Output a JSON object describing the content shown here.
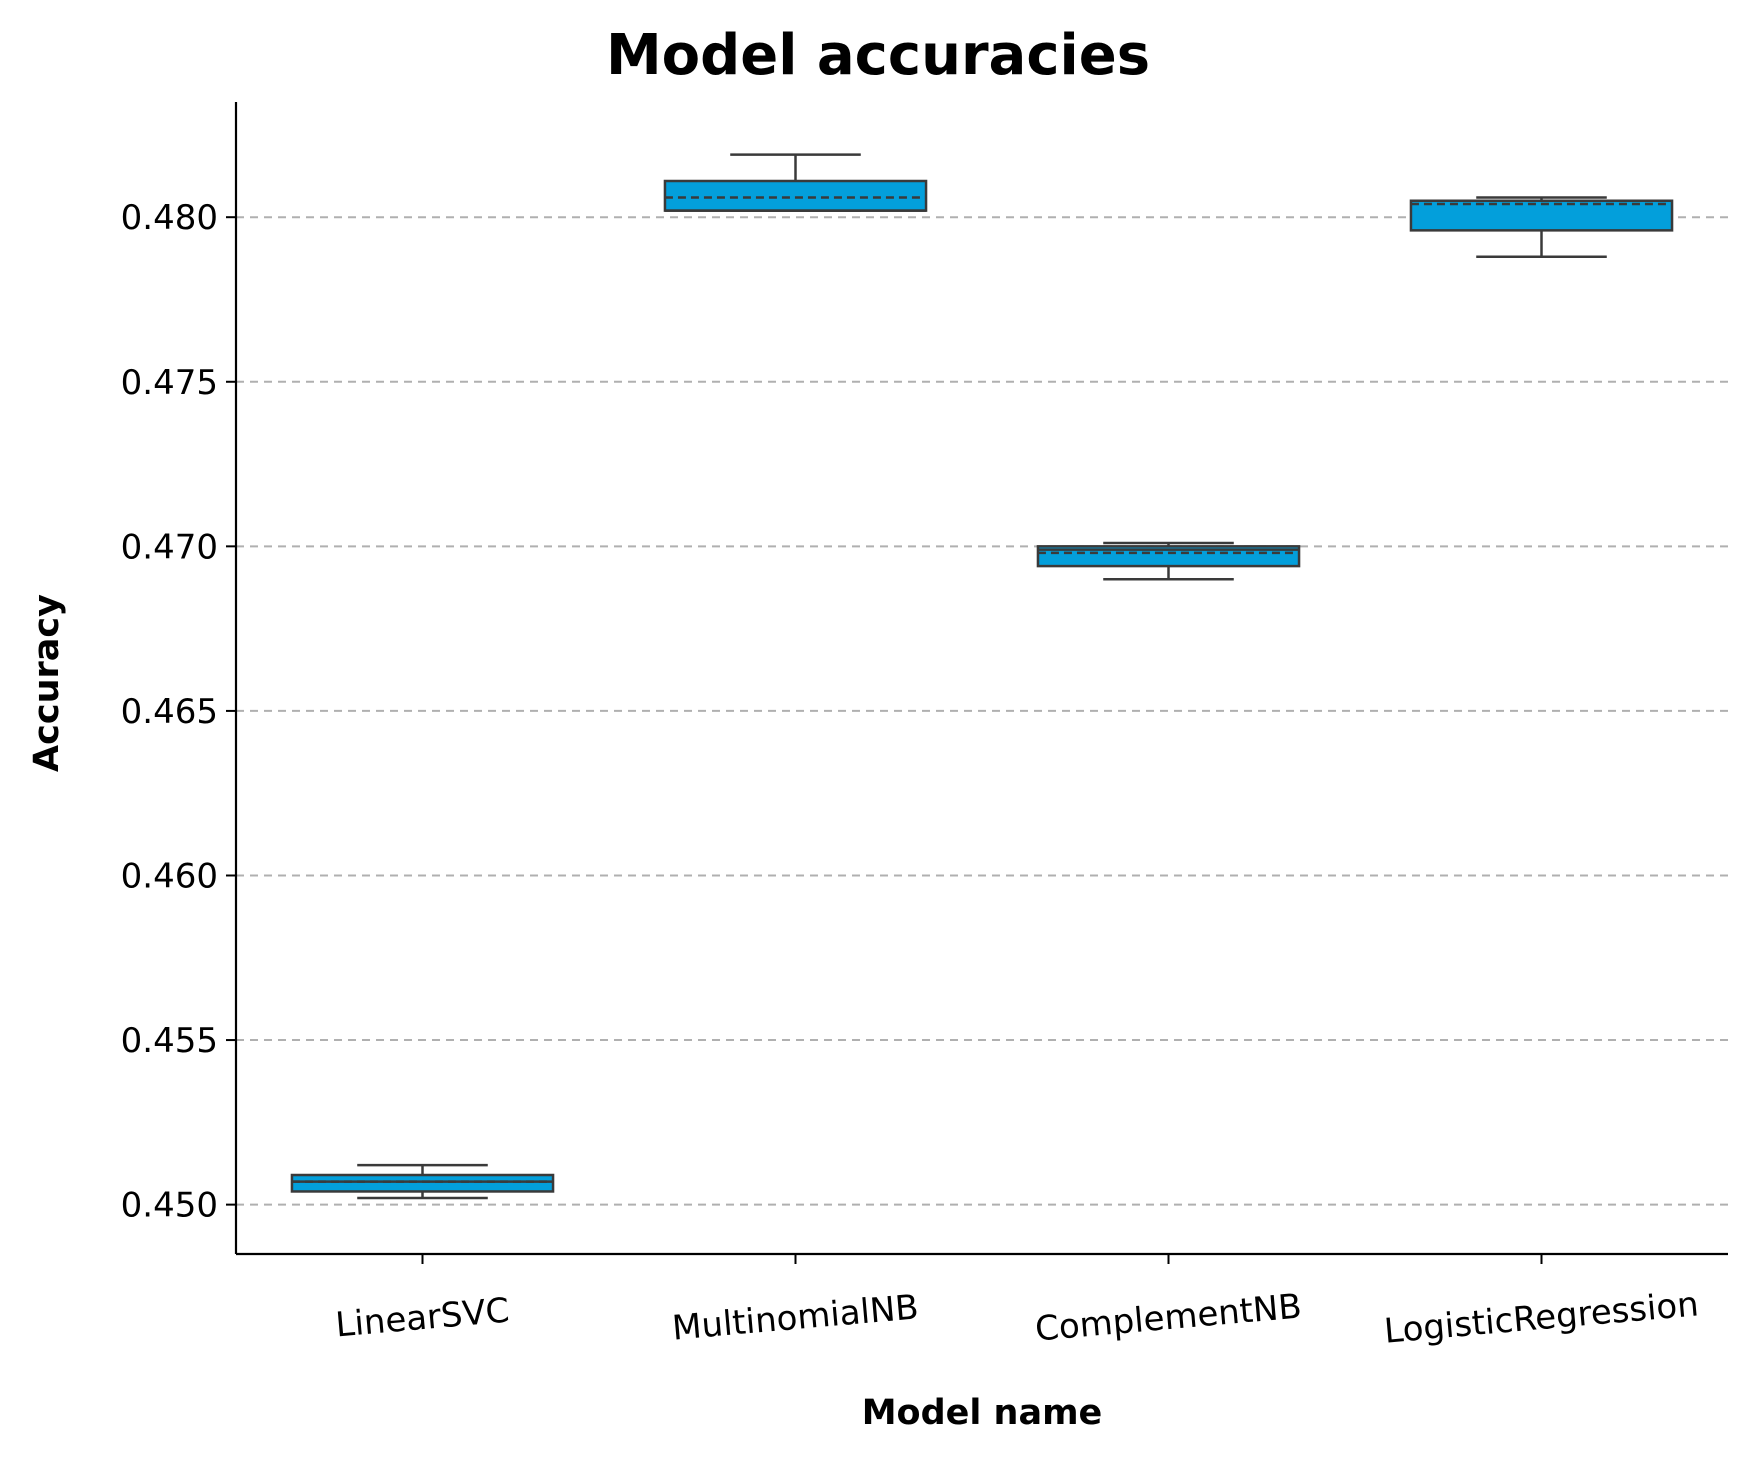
{
  "chart_data": {
    "type": "box",
    "title": "Model accuracies",
    "xlabel": "Model name",
    "ylabel": "Accuracy",
    "ylim": [
      0.4485,
      0.4835
    ],
    "yticks": [
      0.45,
      0.455,
      0.46,
      0.465,
      0.47,
      0.475,
      0.48
    ],
    "ytick_labels": [
      "0.450",
      "0.455",
      "0.460",
      "0.465",
      "0.470",
      "0.475",
      "0.480"
    ],
    "grid": "y, dashed",
    "box_color": "#039fdb",
    "edge_color": "#3a3a3a",
    "categories": [
      "LinearSVC",
      "MultinomialNB",
      "ComplementNB",
      "LogisticRegression"
    ],
    "boxes": [
      {
        "name": "LinearSVC",
        "whisker_low": 0.4502,
        "q1": 0.4504,
        "median": 0.4507,
        "mean": 0.4507,
        "q3": 0.4509,
        "whisker_high": 0.4512
      },
      {
        "name": "MultinomialNB",
        "whisker_low": 0.4802,
        "q1": 0.4802,
        "median": 0.4802,
        "mean": 0.4806,
        "q3": 0.4811,
        "whisker_high": 0.4819
      },
      {
        "name": "ComplementNB",
        "whisker_low": 0.469,
        "q1": 0.4694,
        "median": 0.4699,
        "mean": 0.4698,
        "q3": 0.47,
        "whisker_high": 0.4701
      },
      {
        "name": "LogisticRegression",
        "whisker_low": 0.4788,
        "q1": 0.4796,
        "median": 0.4805,
        "mean": 0.4804,
        "q3": 0.4805,
        "whisker_high": 0.4806
      }
    ]
  }
}
